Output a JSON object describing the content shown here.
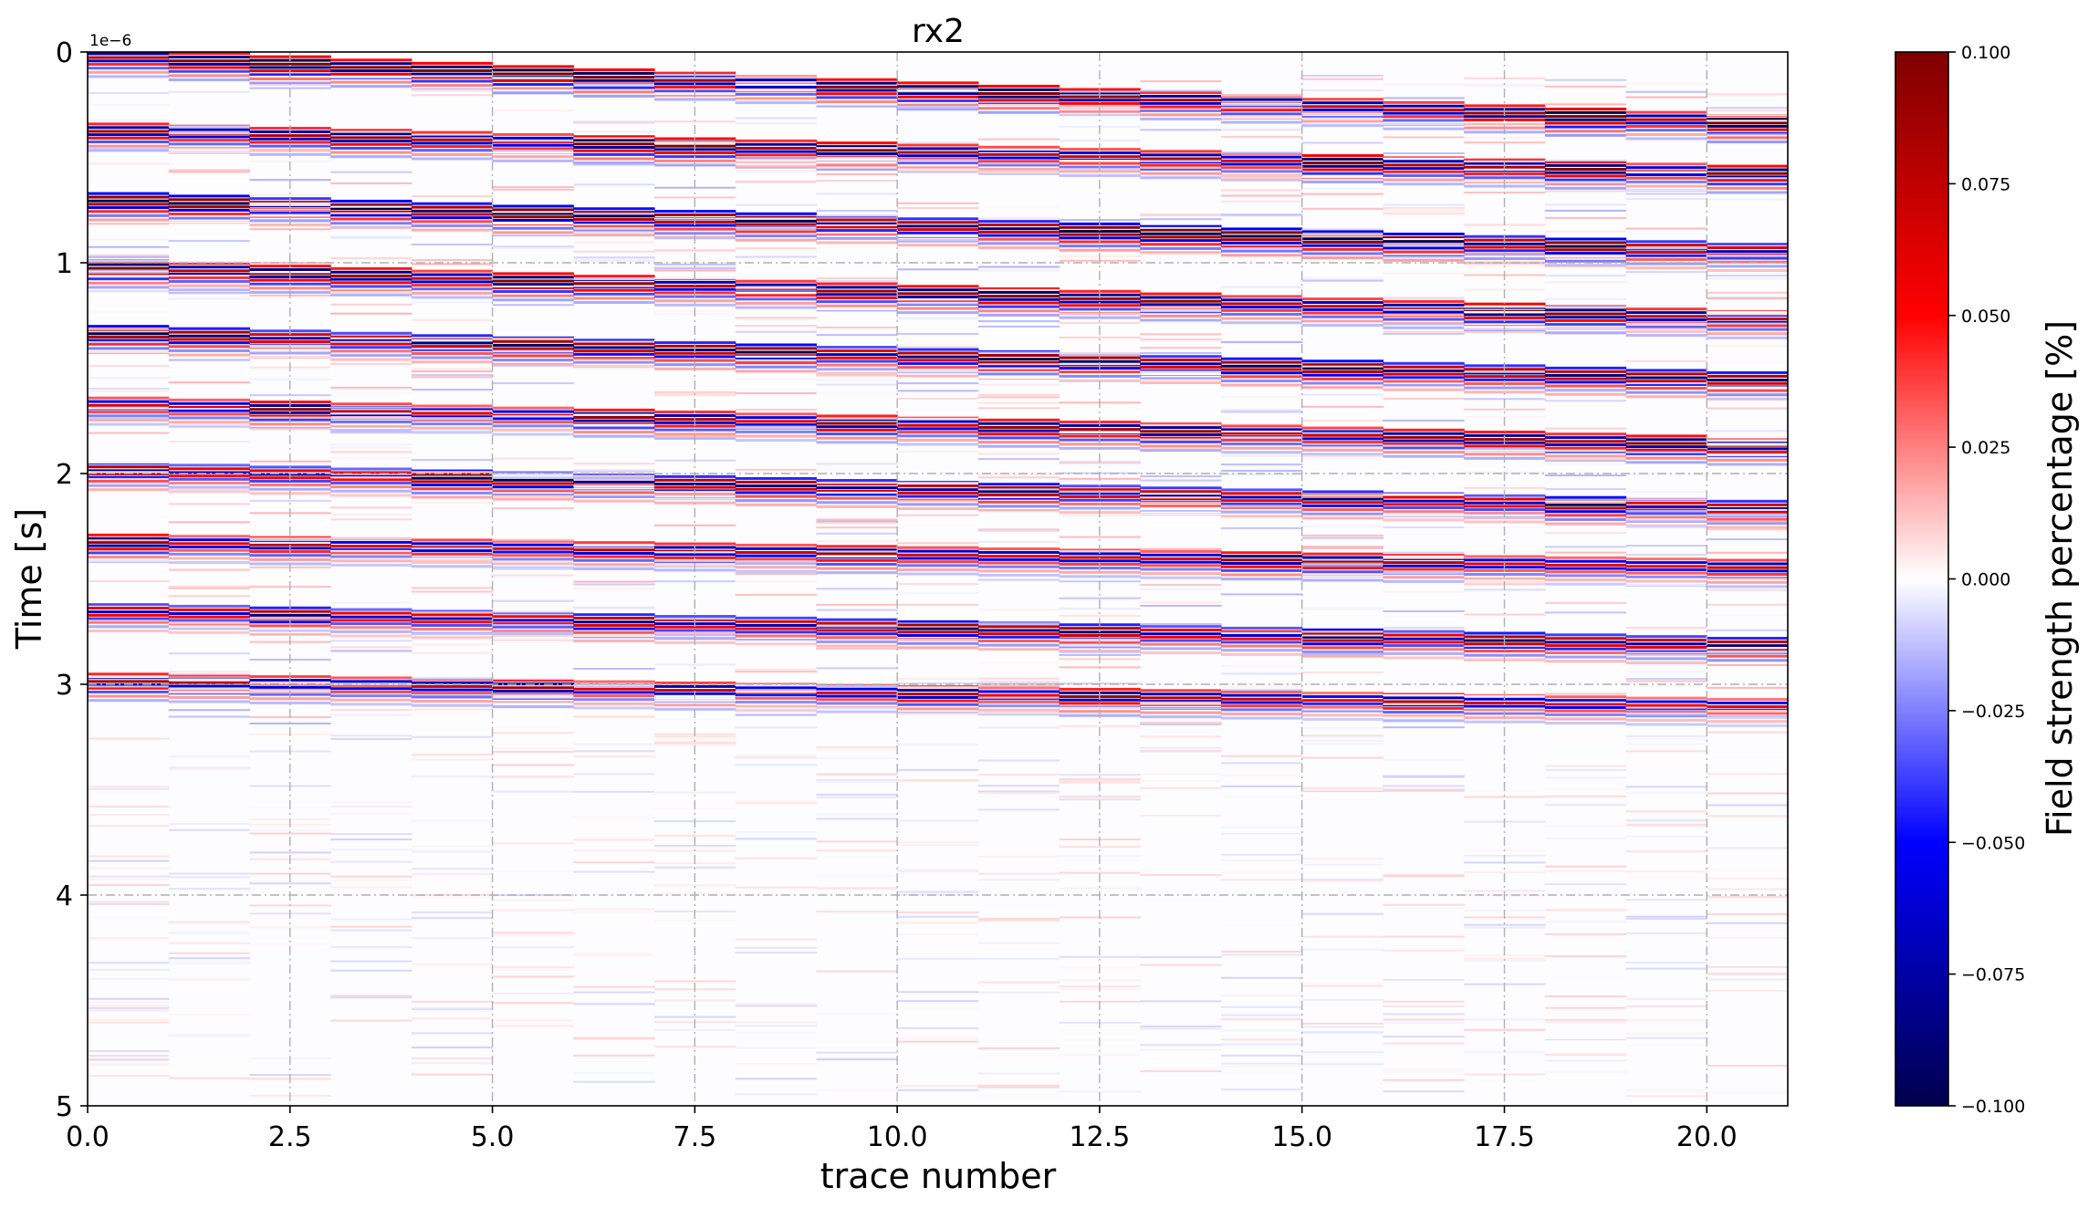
{
  "chart_data": {
    "type": "heatmap",
    "title": "rx2",
    "xlabel": "trace number",
    "ylabel": "Time [s]",
    "y_offset_text": "1e−6",
    "xlim": [
      0,
      21
    ],
    "ylim": [
      5,
      0
    ],
    "x_ticks": [
      0.0,
      2.5,
      5.0,
      7.5,
      10.0,
      12.5,
      15.0,
      17.5,
      20.0
    ],
    "x_tick_labels": [
      "0.0",
      "2.5",
      "5.0",
      "7.5",
      "10.0",
      "12.5",
      "15.0",
      "17.5",
      "20.0"
    ],
    "y_ticks": [
      0,
      1,
      2,
      3,
      4,
      5
    ],
    "y_tick_labels": [
      "0",
      "1",
      "2",
      "3",
      "4",
      "5"
    ],
    "grid": true,
    "colormap": "seismic",
    "colorbar": {
      "label": "Field strength percentage [%]",
      "vmin": -0.1,
      "vmax": 0.1,
      "ticks": [
        0.1,
        0.075,
        0.05,
        0.025,
        0.0,
        -0.025,
        -0.05,
        -0.075,
        -0.1
      ],
      "tick_labels": [
        "0.100",
        "0.075",
        "0.050",
        "0.025",
        "0.000",
        "−0.025",
        "−0.050",
        "−0.075",
        "−0.100"
      ],
      "colors": [
        "#00004c",
        "#0000ff",
        "#ffffff",
        "#ff0000",
        "#7f0000"
      ]
    },
    "n_traces": 21,
    "reflections": [
      {
        "t0": 0.02,
        "dt": 0.0155,
        "value": 0.09
      },
      {
        "t0": 0.37,
        "dt": 0.01,
        "value": 0.085
      },
      {
        "t0": 0.7,
        "dt": 0.012,
        "value": -0.09
      },
      {
        "t0": 1.02,
        "dt": 0.012,
        "value": 0.085
      },
      {
        "t0": 1.33,
        "dt": 0.011,
        "value": -0.085
      },
      {
        "t0": 1.67,
        "dt": 0.0095,
        "value": 0.08
      },
      {
        "t0": 1.98,
        "dt": 0.009,
        "value": -0.08
      },
      {
        "t0": 2.32,
        "dt": 0.006,
        "value": 0.075
      },
      {
        "t0": 2.65,
        "dt": 0.008,
        "value": -0.075
      },
      {
        "t0": 2.98,
        "dt": 0.006,
        "value": 0.07
      }
    ]
  }
}
